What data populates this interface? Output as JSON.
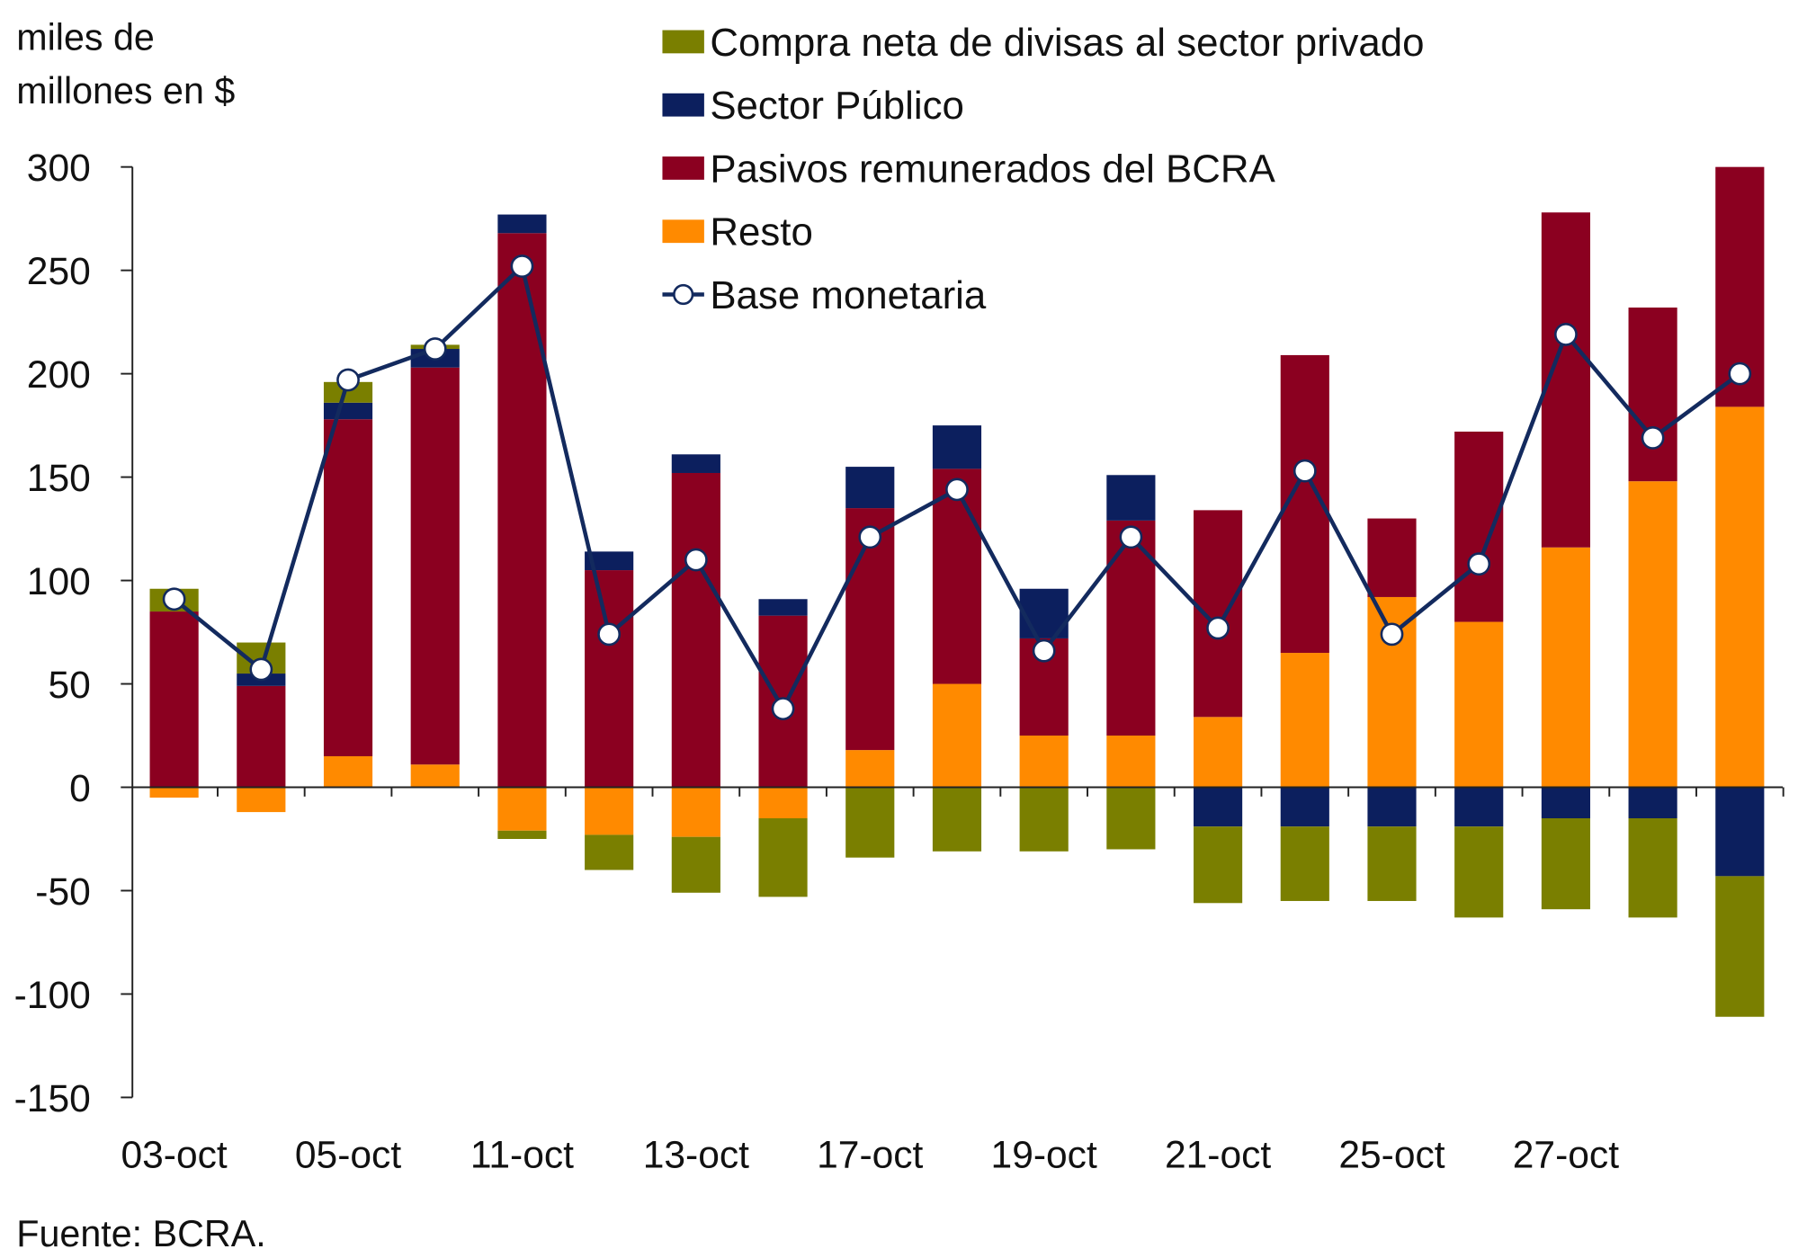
{
  "chart_data": {
    "type": "bar",
    "stacked": true,
    "ylabel_lines": [
      "miles de",
      "millones en $"
    ],
    "ylim": [
      -150,
      300
    ],
    "yticks": [
      300,
      250,
      200,
      150,
      100,
      50,
      0,
      -50,
      -100,
      -150
    ],
    "categories": [
      "03-oct",
      "",
      "05-oct",
      "",
      "11-oct",
      "",
      "13-oct",
      "",
      "17-oct",
      "",
      "19-oct",
      "",
      "21-oct",
      "",
      "25-oct",
      "",
      "27-oct",
      "",
      ""
    ],
    "legend_position": "top",
    "series": [
      {
        "name": "Compra neta de divisas al sector privado",
        "color": "#7a7f00",
        "kind": "bar",
        "values": [
          11,
          15,
          10,
          2,
          -4,
          -17,
          -27,
          -38,
          -34,
          -31,
          -31,
          -30,
          -37,
          -36,
          -36,
          -44,
          -44,
          -48,
          -68
        ]
      },
      {
        "name": "Sector Público",
        "color": "#0c1f5e",
        "kind": "bar",
        "values": [
          0,
          6,
          8,
          9,
          9,
          9,
          9,
          8,
          20,
          21,
          24,
          22,
          -19,
          -19,
          -19,
          -19,
          -15,
          -15,
          -43
        ]
      },
      {
        "name": "Pasivos remunerados del BCRA",
        "color": "#8b0020",
        "kind": "bar",
        "values": [
          85,
          49,
          163,
          192,
          268,
          105,
          152,
          83,
          117,
          104,
          47,
          104,
          100,
          144,
          38,
          92,
          162,
          84,
          116
        ]
      },
      {
        "name": "Resto",
        "color": "#ff8a00",
        "kind": "bar",
        "values": [
          -5,
          -12,
          15,
          11,
          -21,
          -23,
          -24,
          -15,
          18,
          50,
          25,
          25,
          34,
          65,
          92,
          80,
          116,
          148,
          184
        ]
      },
      {
        "name": "Base monetaria",
        "color": "#132a5e",
        "kind": "line",
        "values": [
          91,
          57,
          197,
          212,
          252,
          74,
          110,
          38,
          121,
          144,
          66,
          121,
          77,
          153,
          74,
          108,
          219,
          169,
          200
        ]
      }
    ],
    "grid": false
  },
  "source": "Fuente: BCRA."
}
